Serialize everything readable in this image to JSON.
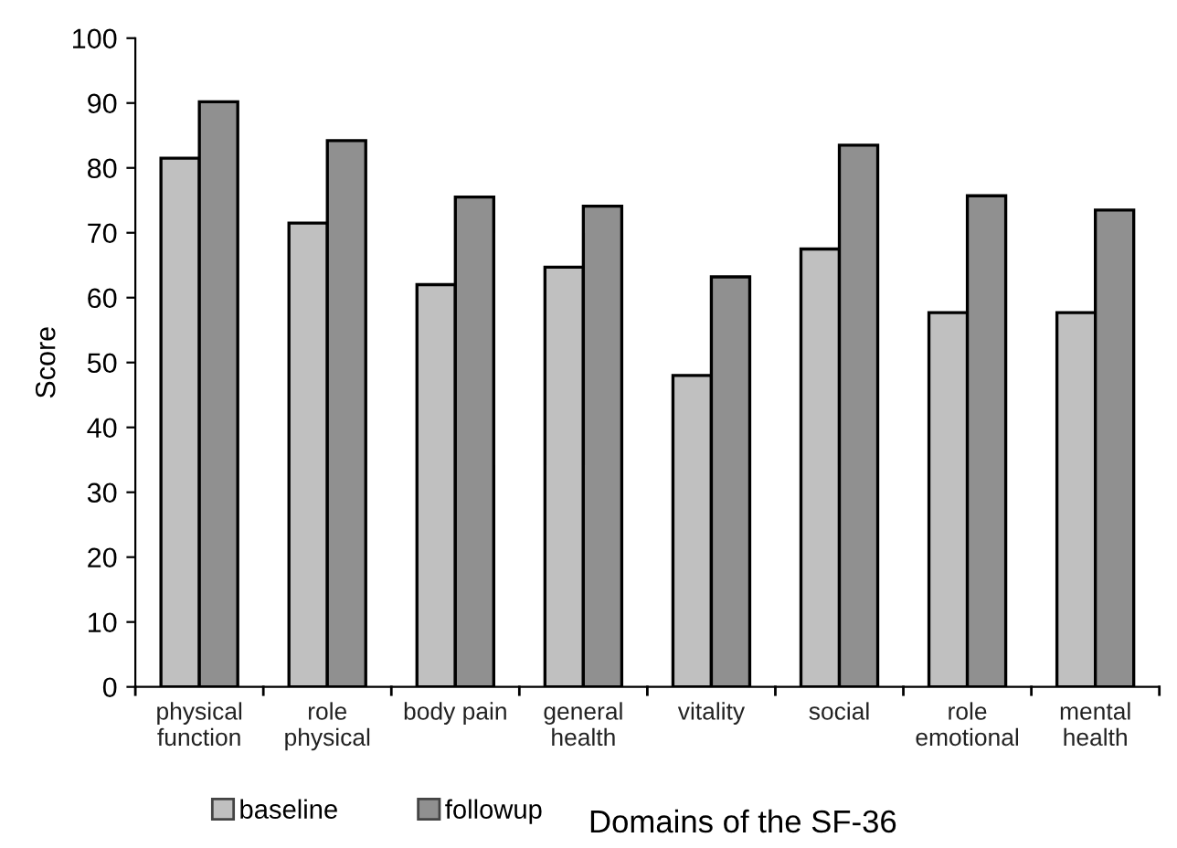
{
  "chart_data": {
    "type": "bar",
    "xlabel": "Domains of the SF-36",
    "ylabel": "Score",
    "categories": [
      "physical\nfunction",
      "role\nphysical",
      "body pain",
      "general\nhealth",
      "vitality",
      "social",
      "role\nemotional",
      "mental\nhealth"
    ],
    "series": [
      {
        "name": "baseline",
        "color": "#c0c0c0",
        "values": [
          81.5,
          71.5,
          62,
          64.7,
          48,
          67.5,
          57.7,
          57.7
        ]
      },
      {
        "name": "followup",
        "color": "#909090",
        "values": [
          90.2,
          84.2,
          75.5,
          74.1,
          63.2,
          83.5,
          75.7,
          73.5
        ]
      }
    ],
    "ylim": [
      0,
      100
    ],
    "yticks": [
      0,
      10,
      20,
      30,
      40,
      50,
      60,
      70,
      80,
      90,
      100
    ],
    "grid": false,
    "legend": "bottom left"
  }
}
